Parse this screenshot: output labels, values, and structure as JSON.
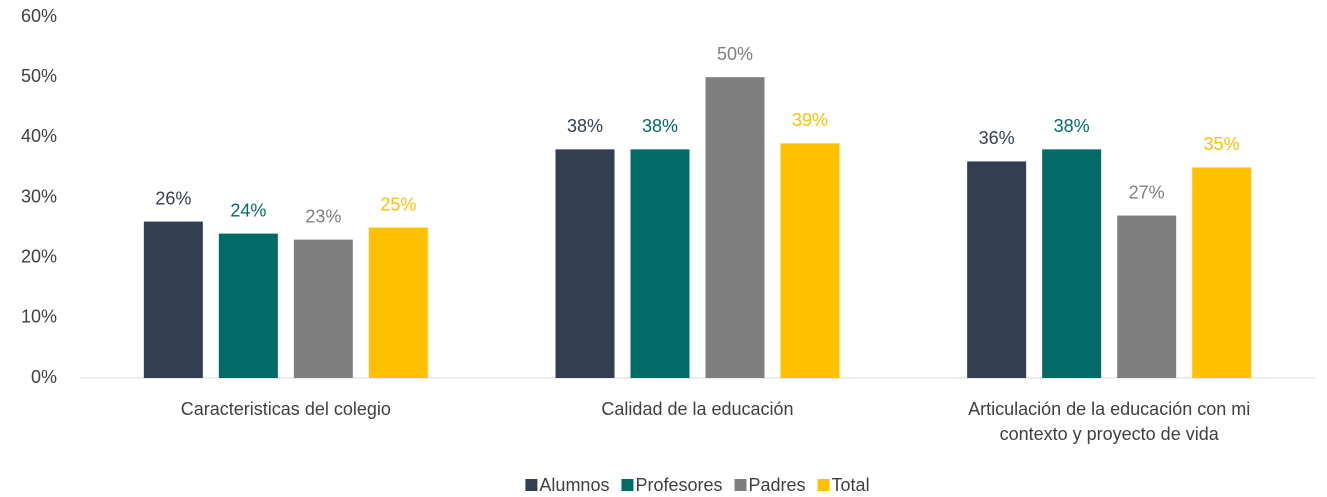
{
  "chart_data": {
    "type": "bar",
    "categories": [
      "Caracteristicas del colegio",
      "Calidad de la educación",
      "Articulación de la educación con mi contexto y proyecto de vida"
    ],
    "series": [
      {
        "name": "Alumnos",
        "color": "#333f50",
        "values": [
          26,
          38,
          36
        ],
        "value_labels": [
          "26%",
          "38%",
          "36%"
        ]
      },
      {
        "name": "Profesores",
        "color": "#006b67",
        "values": [
          24,
          38,
          38
        ],
        "value_labels": [
          "24%",
          "38%",
          "38%"
        ]
      },
      {
        "name": "Padres",
        "color": "#7f7f7f",
        "values": [
          23,
          50,
          27
        ],
        "value_labels": [
          "23%",
          "50%",
          "27%"
        ]
      },
      {
        "name": "Total",
        "color": "#ffc000",
        "values": [
          25,
          39,
          35
        ],
        "value_labels": [
          "25%",
          "39%",
          "35%"
        ]
      }
    ],
    "ylim": [
      0,
      60
    ],
    "yticks": [
      {
        "value": 0,
        "label": "0%"
      },
      {
        "value": 10,
        "label": "10%"
      },
      {
        "value": 20,
        "label": "20%"
      },
      {
        "value": 30,
        "label": "30%"
      },
      {
        "value": 40,
        "label": "40%"
      },
      {
        "value": 50,
        "label": "50%"
      },
      {
        "value": 60,
        "label": "60%"
      }
    ],
    "grid": false,
    "legend": "bottom"
  }
}
